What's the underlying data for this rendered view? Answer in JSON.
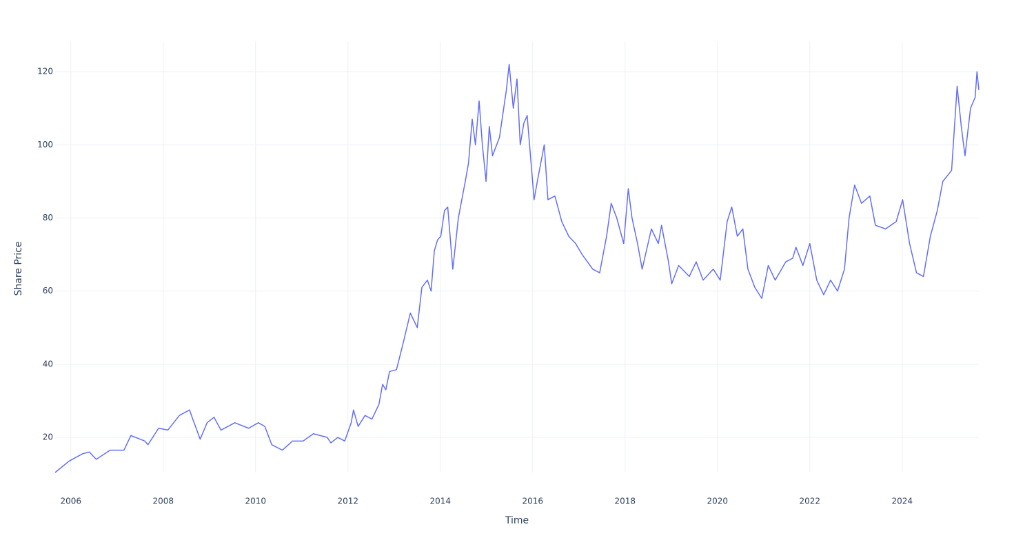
{
  "chart_data": {
    "type": "line",
    "x_label": "Time",
    "y_label": "Share Price",
    "x": [
      2005.66,
      2005.96,
      2006.25,
      2006.4,
      2006.55,
      2006.85,
      2007.15,
      2007.3,
      2007.6,
      2007.67,
      2007.9,
      2008.1,
      2008.35,
      2008.57,
      2008.64,
      2008.8,
      2008.95,
      2009.1,
      2009.25,
      2009.55,
      2009.85,
      2010.06,
      2010.2,
      2010.35,
      2010.58,
      2010.8,
      2011.03,
      2011.25,
      2011.55,
      2011.63,
      2011.78,
      2011.93,
      2012.07,
      2012.12,
      2012.22,
      2012.37,
      2012.52,
      2012.67,
      2012.75,
      2012.82,
      2012.9,
      2013.05,
      2013.2,
      2013.35,
      2013.5,
      2013.6,
      2013.72,
      2013.8,
      2013.87,
      2013.94,
      2014.01,
      2014.09,
      2014.16,
      2014.27,
      2014.39,
      2014.54,
      2014.61,
      2014.69,
      2014.76,
      2014.84,
      2014.91,
      2014.99,
      2015.06,
      2015.13,
      2015.28,
      2015.43,
      2015.49,
      2015.58,
      2015.66,
      2015.73,
      2015.81,
      2015.88,
      2016.03,
      2016.1,
      2016.25,
      2016.33,
      2016.48,
      2016.63,
      2016.78,
      2016.93,
      2017.07,
      2017.3,
      2017.45,
      2017.6,
      2017.7,
      2017.82,
      2017.97,
      2018.07,
      2018.15,
      2018.27,
      2018.37,
      2018.57,
      2018.72,
      2018.79,
      2018.94,
      2019.01,
      2019.16,
      2019.39,
      2019.54,
      2019.69,
      2019.91,
      2020.06,
      2020.21,
      2020.31,
      2020.43,
      2020.55,
      2020.66,
      2020.81,
      2020.96,
      2021.1,
      2021.25,
      2021.48,
      2021.63,
      2021.7,
      2021.85,
      2022.0,
      2022.15,
      2022.3,
      2022.45,
      2022.6,
      2022.75,
      2022.85,
      2022.97,
      2023.12,
      2023.3,
      2023.42,
      2023.64,
      2023.87,
      2024.01,
      2024.16,
      2024.31,
      2024.46,
      2024.61,
      2024.76,
      2024.88,
      2025.07,
      2025.19,
      2025.28,
      2025.36,
      2025.48,
      2025.58,
      2025.62,
      2025.66
    ],
    "values": [
      10.4,
      13.5,
      15.5,
      16,
      14,
      16.5,
      16.5,
      20.5,
      19,
      18,
      22.5,
      22,
      26,
      27.5,
      25,
      19.5,
      24,
      25.5,
      22,
      24,
      22.5,
      24,
      23,
      18,
      16.5,
      19,
      19,
      21,
      20,
      18.5,
      20,
      19,
      24,
      27.5,
      23,
      26,
      25,
      29,
      34.5,
      33,
      38,
      38.5,
      46,
      54,
      50,
      61,
      63,
      60,
      71,
      74,
      75,
      82,
      83,
      66,
      80,
      90,
      95,
      107,
      100,
      112,
      100,
      90,
      105,
      97,
      102,
      115,
      122,
      110,
      118,
      100,
      106,
      108,
      85,
      90,
      100,
      85,
      86,
      79,
      75,
      73,
      70,
      66,
      65,
      75,
      84,
      80,
      73,
      88,
      80,
      73,
      66,
      77,
      73,
      78,
      68,
      62,
      67,
      64,
      68,
      63,
      66,
      63,
      79,
      83,
      75,
      77,
      66,
      61,
      58,
      67,
      63,
      68,
      69,
      72,
      67,
      73,
      63,
      59,
      63,
      60,
      66,
      80,
      89,
      84,
      86,
      78,
      77,
      79,
      85,
      73,
      65,
      64,
      75,
      82,
      90,
      93,
      116,
      105,
      97,
      110,
      113,
      120,
      115
    ],
    "color": "#636efa",
    "xlim": [
      2005.66,
      2025.66
    ],
    "xticks": [
      2006,
      2008,
      2010,
      2012,
      2014,
      2016,
      2018,
      2020,
      2022,
      2024
    ],
    "ylim": [
      10.4,
      128.3
    ],
    "yticks": [
      20,
      40,
      60,
      80,
      100,
      120
    ],
    "grid": true
  }
}
